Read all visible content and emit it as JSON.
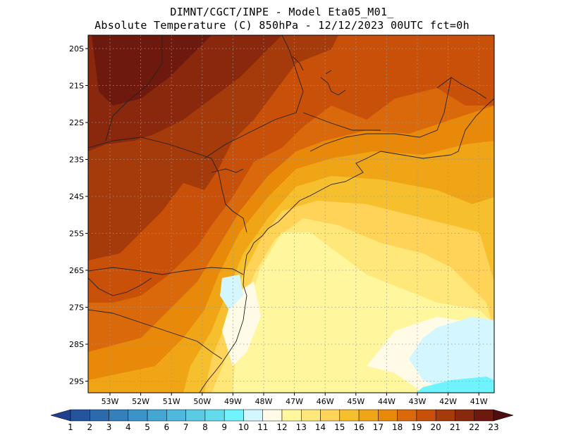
{
  "header": {
    "line1": "DIMNT/CGCT/INPE -  Model Eta05_M01_",
    "line2": "Absolute Temperature (C) 850hPa -  12/12/2023 00UTC fct=0h"
  },
  "axes": {
    "lat_labels": [
      "20S",
      "21S",
      "22S",
      "23S",
      "24S",
      "25S",
      "26S",
      "27S",
      "28S",
      "29S"
    ],
    "lon_labels": [
      "53W",
      "52W",
      "51W",
      "50W",
      "49W",
      "48W",
      "47W",
      "46W",
      "45W",
      "44W",
      "43W",
      "42W",
      "41W"
    ]
  },
  "colorbar": {
    "labels": [
      "1",
      "2",
      "3",
      "4",
      "5",
      "6",
      "7",
      "8",
      "9",
      "10",
      "11",
      "12",
      "13",
      "14",
      "15",
      "16",
      "17",
      "18",
      "19",
      "20",
      "21",
      "22",
      "23"
    ],
    "colors": [
      "#1f3f8f",
      "#24549e",
      "#2a6aad",
      "#3380bd",
      "#3a93c9",
      "#44a6d3",
      "#4eb9dc",
      "#59cbe4",
      "#62dcec",
      "#6ef3ff",
      "#d3f6ff",
      "#fffbe6",
      "#fff69e",
      "#ffe77a",
      "#ffd357",
      "#f5bf2e",
      "#efa515",
      "#e8890a",
      "#d9690a",
      "#c95009",
      "#a53a0b",
      "#8a280d",
      "#6e190e",
      "#4e0d10"
    ]
  },
  "map_colors": {
    "t11": "#d3f6ff",
    "t12": "#fffbe6",
    "t13": "#fff69e",
    "t14": "#ffe77a",
    "t15": "#ffd357",
    "t16": "#f5bf2e",
    "t17": "#efa515",
    "t18": "#e8890a",
    "t19": "#d9690a",
    "t20": "#c95009",
    "t21": "#a53a0b",
    "t22": "#8a280d",
    "t23": "#6e190e",
    "t10": "#6ef3ff"
  }
}
